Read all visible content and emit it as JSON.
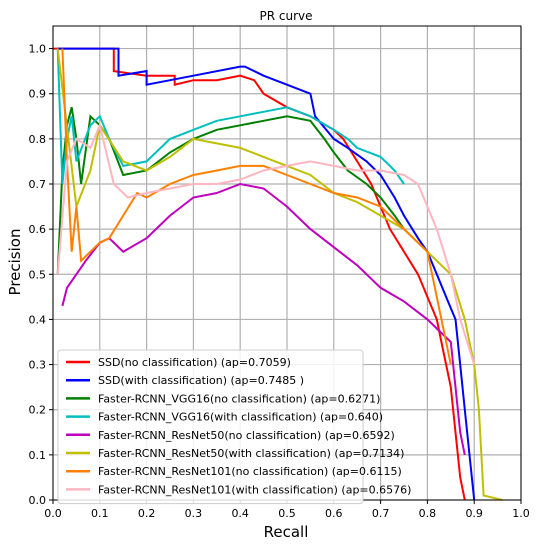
{
  "chart_data": {
    "type": "line",
    "title": "PR curve",
    "xlabel": "Recall",
    "ylabel": "Precision",
    "xlim": [
      0.0,
      1.0
    ],
    "ylim": [
      0.0,
      1.05
    ],
    "xticks": [
      "0.0",
      "0.1",
      "0.2",
      "0.3",
      "0.4",
      "0.5",
      "0.6",
      "0.7",
      "0.8",
      "0.9",
      "1.0"
    ],
    "yticks": [
      "0.0",
      "0.1",
      "0.2",
      "0.3",
      "0.4",
      "0.5",
      "0.6",
      "0.7",
      "0.8",
      "0.9",
      "1.0"
    ],
    "grid": true,
    "legend_position": "lower-left",
    "series": [
      {
        "name": "SSD(no classification) (ap=0.7059)",
        "color": "#ff0000",
        "x": [
          0.0,
          0.05,
          0.1,
          0.13,
          0.13,
          0.2,
          0.26,
          0.26,
          0.3,
          0.35,
          0.4,
          0.43,
          0.45,
          0.5,
          0.55,
          0.6,
          0.62,
          0.65,
          0.68,
          0.7,
          0.72,
          0.75,
          0.78,
          0.8,
          0.82,
          0.83,
          0.85,
          0.86,
          0.87,
          0.88
        ],
        "y": [
          1.0,
          1.0,
          1.0,
          1.0,
          0.95,
          0.94,
          0.94,
          0.92,
          0.93,
          0.93,
          0.94,
          0.93,
          0.9,
          0.87,
          0.85,
          0.82,
          0.8,
          0.75,
          0.7,
          0.65,
          0.6,
          0.55,
          0.5,
          0.45,
          0.4,
          0.35,
          0.25,
          0.15,
          0.05,
          0.0
        ]
      },
      {
        "name": "SSD(with classification) (ap=0.7485 )",
        "color": "#0000ff",
        "x": [
          0.01,
          0.14,
          0.14,
          0.2,
          0.2,
          0.3,
          0.4,
          0.41,
          0.45,
          0.5,
          0.55,
          0.56,
          0.6,
          0.63,
          0.67,
          0.7,
          0.73,
          0.75,
          0.78,
          0.8,
          0.82,
          0.84,
          0.86,
          0.87,
          0.88,
          0.89,
          0.9
        ],
        "y": [
          1.0,
          1.0,
          0.94,
          0.95,
          0.92,
          0.94,
          0.96,
          0.96,
          0.94,
          0.92,
          0.9,
          0.85,
          0.8,
          0.78,
          0.75,
          0.72,
          0.67,
          0.63,
          0.58,
          0.55,
          0.5,
          0.45,
          0.4,
          0.3,
          0.2,
          0.1,
          0.0
        ]
      },
      {
        "name": "Faster-RCNN_VGG16(no classification) (ap=0.6271)",
        "color": "#008000",
        "x": [
          0.01,
          0.02,
          0.03,
          0.04,
          0.05,
          0.06,
          0.08,
          0.1,
          0.12,
          0.15,
          0.2,
          0.25,
          0.3,
          0.35,
          0.4,
          0.45,
          0.5,
          0.55,
          0.58,
          0.6,
          0.63,
          0.67,
          0.7,
          0.73,
          0.75
        ],
        "y": [
          0.5,
          0.73,
          0.83,
          0.87,
          0.8,
          0.7,
          0.85,
          0.83,
          0.8,
          0.72,
          0.73,
          0.77,
          0.8,
          0.82,
          0.83,
          0.84,
          0.85,
          0.84,
          0.8,
          0.77,
          0.73,
          0.7,
          0.67,
          0.63,
          0.6
        ]
      },
      {
        "name": "Faster-RCNN_VGG16(with classification) (ap=0.640)",
        "color": "#00bfbf",
        "x": [
          0.01,
          0.02,
          0.03,
          0.04,
          0.05,
          0.08,
          0.1,
          0.12,
          0.15,
          0.2,
          0.25,
          0.3,
          0.35,
          0.4,
          0.45,
          0.5,
          0.55,
          0.6,
          0.63,
          0.65,
          0.7,
          0.73,
          0.75
        ],
        "y": [
          1.0,
          0.7,
          0.8,
          0.85,
          0.75,
          0.83,
          0.85,
          0.8,
          0.74,
          0.75,
          0.8,
          0.82,
          0.84,
          0.85,
          0.86,
          0.87,
          0.85,
          0.82,
          0.8,
          0.78,
          0.76,
          0.73,
          0.7
        ]
      },
      {
        "name": "Faster-RCNN_ResNet50(no classification) (ap=0.6592)",
        "color": "#bf00bf",
        "x": [
          0.02,
          0.03,
          0.05,
          0.07,
          0.1,
          0.12,
          0.15,
          0.2,
          0.25,
          0.3,
          0.35,
          0.4,
          0.45,
          0.5,
          0.55,
          0.6,
          0.65,
          0.7,
          0.75,
          0.8,
          0.82,
          0.85,
          0.86,
          0.87,
          0.88
        ],
        "y": [
          0.43,
          0.47,
          0.5,
          0.53,
          0.57,
          0.58,
          0.55,
          0.58,
          0.63,
          0.67,
          0.68,
          0.7,
          0.69,
          0.65,
          0.6,
          0.56,
          0.52,
          0.47,
          0.44,
          0.4,
          0.38,
          0.35,
          0.25,
          0.15,
          0.1
        ]
      },
      {
        "name": "Faster-RCNN_ResNet50(with classification) (ap=0.7134)",
        "color": "#bfbf00",
        "x": [
          0.01,
          0.05,
          0.08,
          0.1,
          0.15,
          0.2,
          0.25,
          0.3,
          0.35,
          0.4,
          0.45,
          0.5,
          0.55,
          0.6,
          0.65,
          0.7,
          0.75,
          0.8,
          0.85,
          0.88,
          0.9,
          0.91,
          0.92,
          0.96
        ],
        "y": [
          1.0,
          0.65,
          0.73,
          0.83,
          0.75,
          0.73,
          0.76,
          0.8,
          0.79,
          0.78,
          0.76,
          0.74,
          0.72,
          0.68,
          0.66,
          0.63,
          0.6,
          0.55,
          0.5,
          0.4,
          0.3,
          0.2,
          0.01,
          0.0
        ]
      },
      {
        "name": "Faster-RCNN_ResNet101(no classification) (ap=0.6115)",
        "color": "#ff8000",
        "x": [
          0.02,
          0.03,
          0.04,
          0.05,
          0.06,
          0.08,
          0.1,
          0.12,
          0.15,
          0.18,
          0.2,
          0.25,
          0.3,
          0.35,
          0.4,
          0.45,
          0.5,
          0.55,
          0.6,
          0.65,
          0.7,
          0.75,
          0.8,
          0.82,
          0.85
        ],
        "y": [
          1.0,
          0.75,
          0.55,
          0.65,
          0.53,
          0.55,
          0.57,
          0.58,
          0.63,
          0.68,
          0.67,
          0.7,
          0.72,
          0.73,
          0.74,
          0.74,
          0.72,
          0.7,
          0.68,
          0.67,
          0.65,
          0.6,
          0.55,
          0.45,
          0.3
        ]
      },
      {
        "name": "Faster-RCNN_ResNet101(with classification) (ap=0.6576)",
        "color": "#ffb6c1",
        "x": [
          0.01,
          0.03,
          0.05,
          0.08,
          0.1,
          0.13,
          0.16,
          0.2,
          0.25,
          0.3,
          0.35,
          0.4,
          0.45,
          0.5,
          0.55,
          0.6,
          0.65,
          0.7,
          0.75,
          0.78,
          0.8,
          0.82,
          0.85,
          0.87,
          0.9
        ],
        "y": [
          0.5,
          0.75,
          0.8,
          0.78,
          0.83,
          0.7,
          0.67,
          0.68,
          0.69,
          0.7,
          0.7,
          0.71,
          0.73,
          0.74,
          0.75,
          0.74,
          0.73,
          0.73,
          0.72,
          0.7,
          0.65,
          0.6,
          0.5,
          0.4,
          0.3
        ]
      }
    ]
  }
}
